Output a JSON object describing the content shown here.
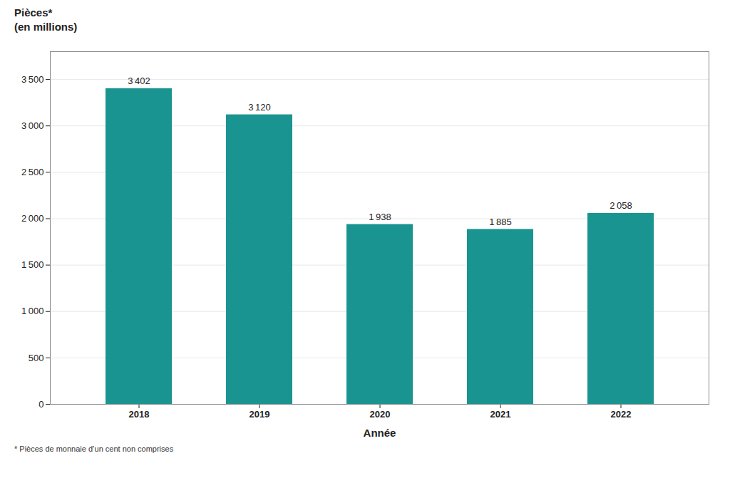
{
  "chart_data": {
    "type": "bar",
    "ylabel": "Pièces*\n(en millions)",
    "xlabel": "Année",
    "caption": "* Pièces de monnaie d’un cent non comprises",
    "categories": [
      "2018",
      "2019",
      "2020",
      "2021",
      "2022"
    ],
    "values": [
      3402,
      3120,
      1938,
      1885,
      2058
    ],
    "value_labels": [
      "3 402",
      "3 120",
      "1 938",
      "1 885",
      "2 058"
    ],
    "color": "#1a9490",
    "ylim": [
      0,
      3800
    ],
    "yticks": [
      0,
      500,
      {
        "value": 1000,
        "label": "1 000"
      },
      {
        "value": 1500,
        "label": "1 500"
      },
      {
        "value": 2000,
        "label": "2 000"
      },
      {
        "value": 2500,
        "label": "2 500"
      },
      {
        "value": 3000,
        "label": "3 000"
      },
      {
        "value": 3500,
        "label": "3 500"
      }
    ],
    "grid": true,
    "data_labels": true
  }
}
